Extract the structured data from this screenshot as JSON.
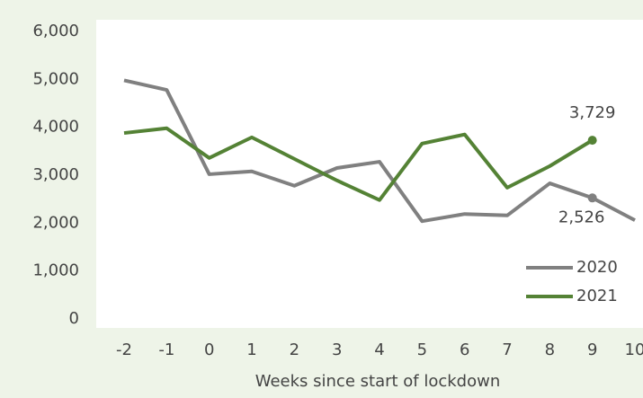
{
  "chart_data": {
    "type": "line",
    "x_label": "Weeks since start of lockdown",
    "x": [
      -2,
      -1,
      0,
      1,
      2,
      3,
      4,
      5,
      6,
      7,
      8,
      9,
      10
    ],
    "series": [
      {
        "name": "2020",
        "color": "#808080",
        "values": [
          4980,
          4780,
          3020,
          3080,
          2780,
          3150,
          3280,
          2040,
          2190,
          2160,
          2830,
          2526,
          2060
        ],
        "value_labels": [
          null,
          null,
          null,
          null,
          null,
          null,
          null,
          null,
          null,
          null,
          null,
          "2,526",
          null
        ]
      },
      {
        "name": "2021",
        "color": "#548235",
        "values": [
          3880,
          3980,
          3360,
          3790,
          3340,
          2890,
          2480,
          3660,
          3850,
          2740,
          3190,
          3729,
          null
        ],
        "value_labels": [
          null,
          null,
          null,
          null,
          null,
          null,
          null,
          null,
          null,
          null,
          null,
          "3,729",
          null
        ]
      }
    ],
    "xlim": [
      -2,
      10
    ],
    "xticks": [
      -2,
      -1,
      0,
      1,
      2,
      3,
      4,
      5,
      6,
      7,
      8,
      9,
      10
    ],
    "ylim": [
      0,
      6000
    ],
    "yticks": [
      0,
      {
        "value": 1000,
        "label": "1,000"
      },
      {
        "value": 2000,
        "label": "2,000"
      },
      {
        "value": 3000,
        "label": "3,000"
      },
      {
        "value": 4000,
        "label": "4,000"
      },
      {
        "value": 5000,
        "label": "5,000"
      },
      {
        "value": 6000,
        "label": "6,000"
      }
    ],
    "grid": false,
    "legend": "lower right"
  }
}
